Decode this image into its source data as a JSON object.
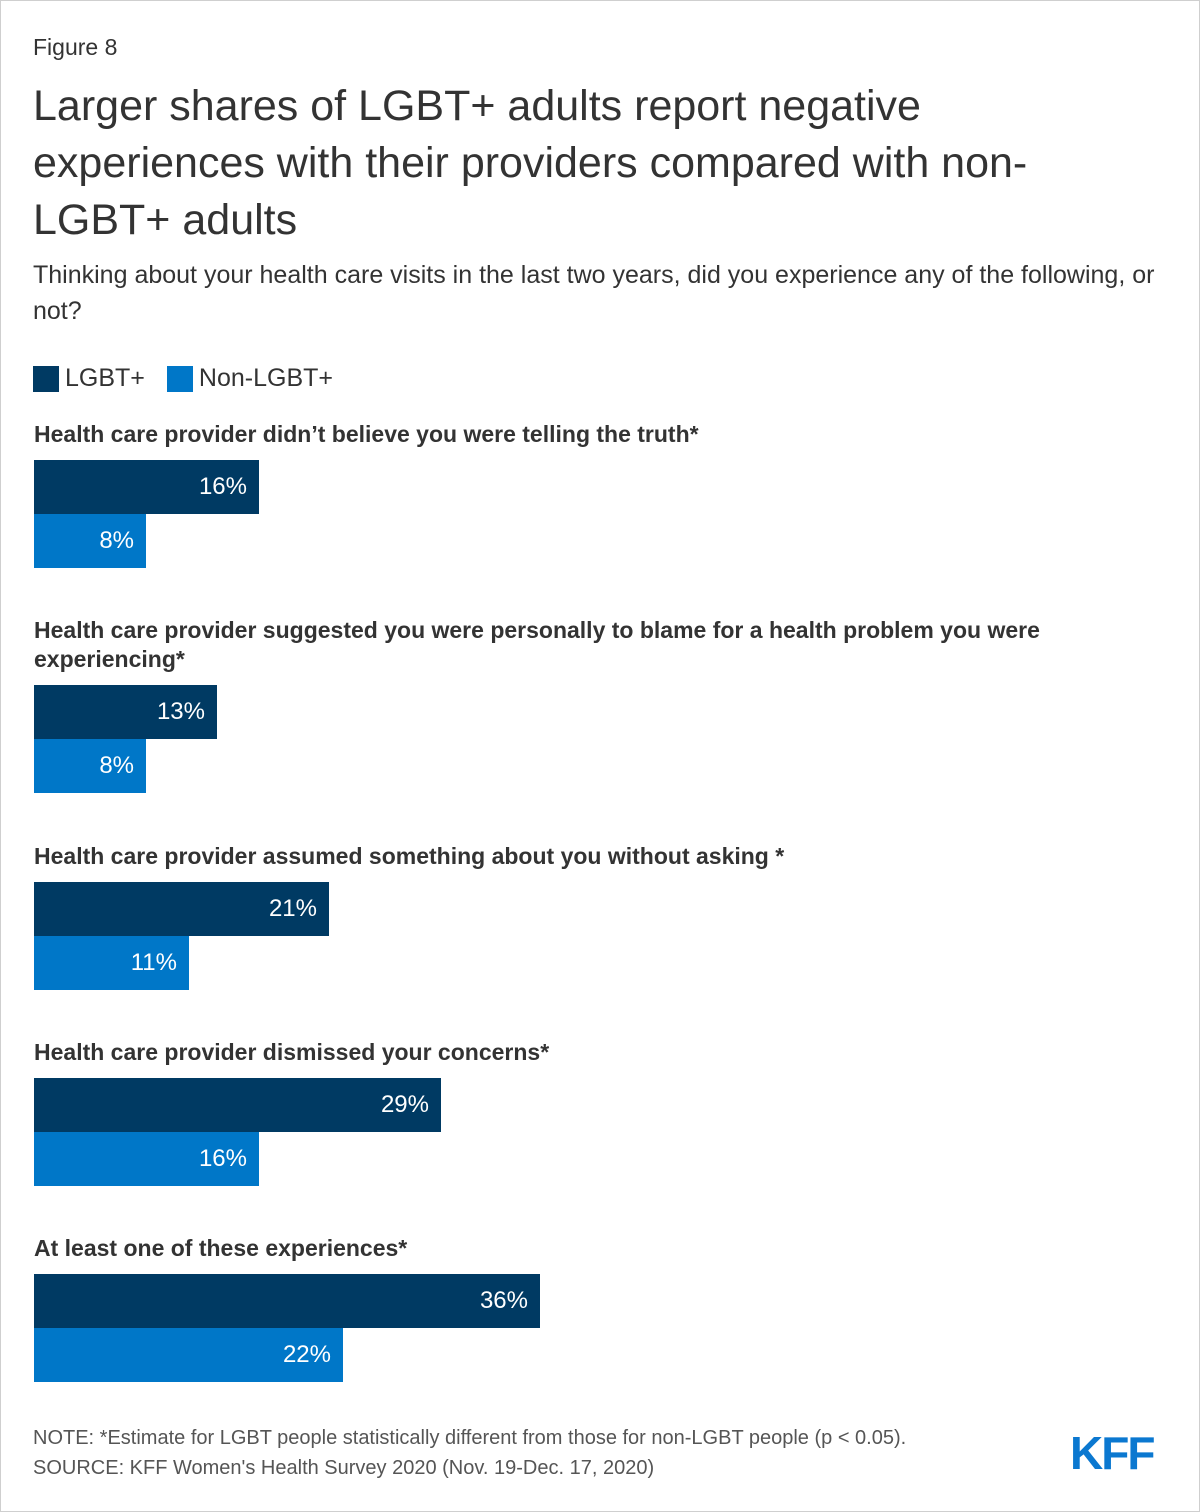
{
  "figure_label": "Figure 8",
  "title": "Larger shares of LGBT+ adults report negative experiences with their providers compared with non-LGBT+ adults",
  "subtitle": "Thinking about your health care visits in the last two years, did you experience any of the following, or not?",
  "colors": {
    "lgbt": "#003a63",
    "non_lgbt": "#0077c8"
  },
  "chart_data": {
    "type": "bar",
    "orientation": "horizontal",
    "legend": "top-left",
    "categories": [
      "Health care provider didn’t believe you were telling the truth*",
      "Health care provider suggested you were personally to blame for a health problem you were experiencing*",
      "Health care provider assumed something about you without asking *",
      "Health care provider dismissed your concerns*",
      "At least one of these experiences*"
    ],
    "series": [
      {
        "name": "LGBT+",
        "values": [
          16,
          13,
          21,
          29,
          36
        ],
        "labels": [
          "16%",
          "13%",
          "21%",
          "29%",
          "36%"
        ]
      },
      {
        "name": "Non-LGBT+",
        "values": [
          8,
          8,
          11,
          16,
          22
        ],
        "labels": [
          "8%",
          "8%",
          "11%",
          "16%",
          "22%"
        ]
      }
    ],
    "xlim": [
      0,
      80
    ]
  },
  "note": "NOTE: *Estimate for LGBT people statistically different from those for non-LGBT people (p < 0.05).",
  "source": "SOURCE: KFF Women's Health Survey 2020 (Nov. 19-Dec. 17, 2020)",
  "logo_text": "KFF"
}
